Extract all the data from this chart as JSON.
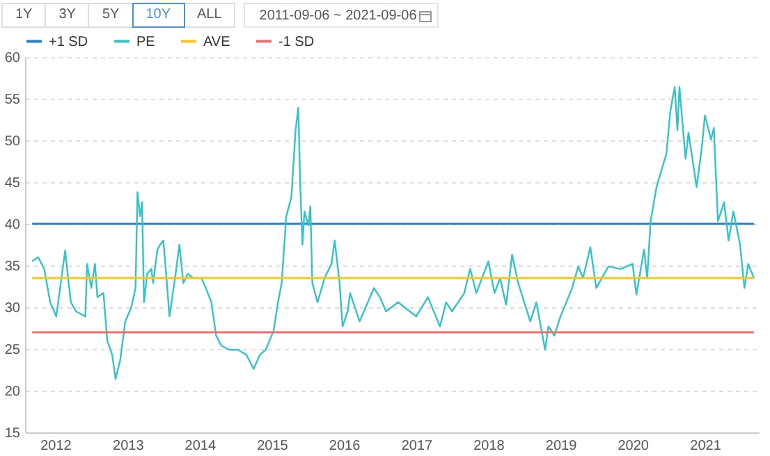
{
  "chart_data": {
    "type": "line",
    "annotations": [
      "1Y",
      "3Y",
      "5Y",
      "10Y",
      "ALL",
      "2011-09-06 ~ 2021-09-06"
    ],
    "xlim": [
      "2011-08-01",
      "2021-10-01"
    ],
    "xticks": [
      "2012",
      "2013",
      "2014",
      "2015",
      "2016",
      "2017",
      "2018",
      "2019",
      "2020",
      "2021"
    ],
    "ylim": [
      15,
      60
    ],
    "yticks": [
      15,
      20,
      25,
      30,
      35,
      40,
      45,
      50,
      55,
      60
    ],
    "grid": "y",
    "legend": "top left",
    "series": [
      {
        "name": "+1 SD",
        "color": "#2b7fc7",
        "type": "line",
        "x": [
          "2011-09-06",
          "2021-09-06"
        ],
        "values": [
          40,
          40
        ]
      },
      {
        "name": "PE",
        "color": "#35c3c8",
        "type": "line",
        "x": [
          "2011-09-06",
          "2011-10-06",
          "2011-11-06",
          "2011-12-06",
          "2012-01-06",
          "2012-02-20",
          "2012-03-06",
          "2012-03-20",
          "2012-04-15",
          "2012-06-01",
          "2012-06-10",
          "2012-07-01",
          "2012-07-20",
          "2012-08-01",
          "2012-09-01",
          "2012-09-20",
          "2012-10-15",
          "2012-11-01",
          "2012-11-25",
          "2012-12-20",
          "2013-01-20",
          "2013-02-10",
          "2013-02-20",
          "2013-03-05",
          "2013-03-15",
          "2013-03-25",
          "2013-04-10",
          "2013-05-01",
          "2013-05-10",
          "2013-06-01",
          "2013-06-15",
          "2013-07-01",
          "2013-07-15",
          "2013-08-01",
          "2013-09-01",
          "2013-09-20",
          "2013-10-10",
          "2013-11-01",
          "2013-12-01",
          "2014-01-10",
          "2014-02-01",
          "2014-03-01",
          "2014-03-25",
          "2014-04-20",
          "2014-06-01",
          "2014-07-15",
          "2014-08-25",
          "2014-10-01",
          "2014-11-01",
          "2014-12-01",
          "2015-01-10",
          "2015-02-01",
          "2015-02-20",
          "2015-03-15",
          "2015-04-10",
          "2015-05-01",
          "2015-05-15",
          "2015-05-25",
          "2015-06-05",
          "2015-06-15",
          "2015-07-05",
          "2015-07-15",
          "2015-07-25",
          "2015-08-20",
          "2015-09-25",
          "2015-10-30",
          "2015-11-15",
          "2015-12-10",
          "2015-12-25",
          "2016-01-20",
          "2016-02-01",
          "2016-03-20",
          "2016-05-01",
          "2016-06-01",
          "2016-07-01",
          "2016-08-01",
          "2016-10-01",
          "2017-01-01",
          "2017-03-01",
          "2017-05-01",
          "2017-06-01",
          "2017-07-01",
          "2017-09-01",
          "2017-10-01",
          "2017-11-01",
          "2018-01-01",
          "2018-02-01",
          "2018-03-01",
          "2018-04-01",
          "2018-05-01",
          "2018-06-01",
          "2018-08-01",
          "2018-09-01",
          "2018-10-15",
          "2018-11-01",
          "2018-12-01",
          "2019-01-01",
          "2019-03-01",
          "2019-04-01",
          "2019-04-25",
          "2019-06-01",
          "2019-07-01",
          "2019-09-01",
          "2019-11-01",
          "2020-01-01",
          "2020-01-20",
          "2020-02-28",
          "2020-03-15",
          "2020-04-01",
          "2020-05-01",
          "2020-06-20",
          "2020-07-10",
          "2020-08-01",
          "2020-08-15",
          "2020-08-25",
          "2020-09-25",
          "2020-10-10",
          "2020-11-20",
          "2020-12-15",
          "2021-01-01",
          "2021-02-01",
          "2021-02-15",
          "2021-03-08",
          "2021-04-08",
          "2021-05-01",
          "2021-05-25",
          "2021-06-28",
          "2021-07-20",
          "2021-08-08",
          "2021-09-06"
        ],
        "values": [
          35.5,
          36.0,
          34.6,
          30.6,
          28.9,
          36.8,
          33.5,
          30.6,
          29.5,
          28.9,
          35.2,
          32.3,
          35.2,
          31.2,
          31.7,
          26.0,
          24.3,
          21.4,
          23.7,
          28.3,
          30.0,
          32.3,
          43.8,
          40.9,
          42.6,
          30.6,
          34.0,
          34.6,
          32.9,
          36.9,
          37.5,
          38.0,
          34.0,
          28.9,
          34.0,
          37.5,
          32.9,
          34.0,
          33.5,
          33.5,
          32.3,
          30.6,
          26.6,
          25.4,
          24.9,
          24.9,
          24.3,
          22.6,
          24.3,
          24.9,
          27.2,
          30.6,
          32.9,
          40.9,
          43.2,
          51.2,
          53.9,
          44.4,
          37.5,
          41.5,
          39.8,
          42.1,
          32.9,
          30.6,
          33.5,
          35.2,
          38.0,
          32.9,
          27.7,
          29.5,
          31.7,
          28.3,
          30.6,
          32.3,
          31.2,
          29.5,
          30.6,
          28.9,
          31.2,
          27.7,
          30.6,
          29.5,
          31.7,
          34.6,
          31.7,
          35.5,
          31.7,
          33.5,
          30.3,
          36.3,
          32.9,
          28.3,
          30.6,
          24.9,
          27.7,
          26.6,
          28.9,
          32.3,
          34.9,
          33.5,
          37.2,
          32.3,
          34.9,
          34.6,
          35.2,
          31.5,
          36.9,
          33.5,
          40.3,
          44.4,
          48.4,
          53.5,
          56.4,
          51.2,
          56.4,
          47.8,
          50.9,
          44.4,
          48.9,
          53.0,
          50.1,
          51.5,
          40.3,
          42.6,
          38.0,
          41.5,
          37.5,
          32.3,
          35.2,
          33.5
        ]
      },
      {
        "name": "AVE",
        "color": "#f5c71a",
        "type": "line",
        "x": [
          "2011-09-06",
          "2021-09-06"
        ],
        "values": [
          33.5,
          33.5
        ]
      },
      {
        "name": "-1 SD",
        "color": "#ee6e6e",
        "type": "line",
        "x": [
          "2011-09-06",
          "2021-09-06"
        ],
        "values": [
          27,
          27
        ]
      }
    ]
  }
}
